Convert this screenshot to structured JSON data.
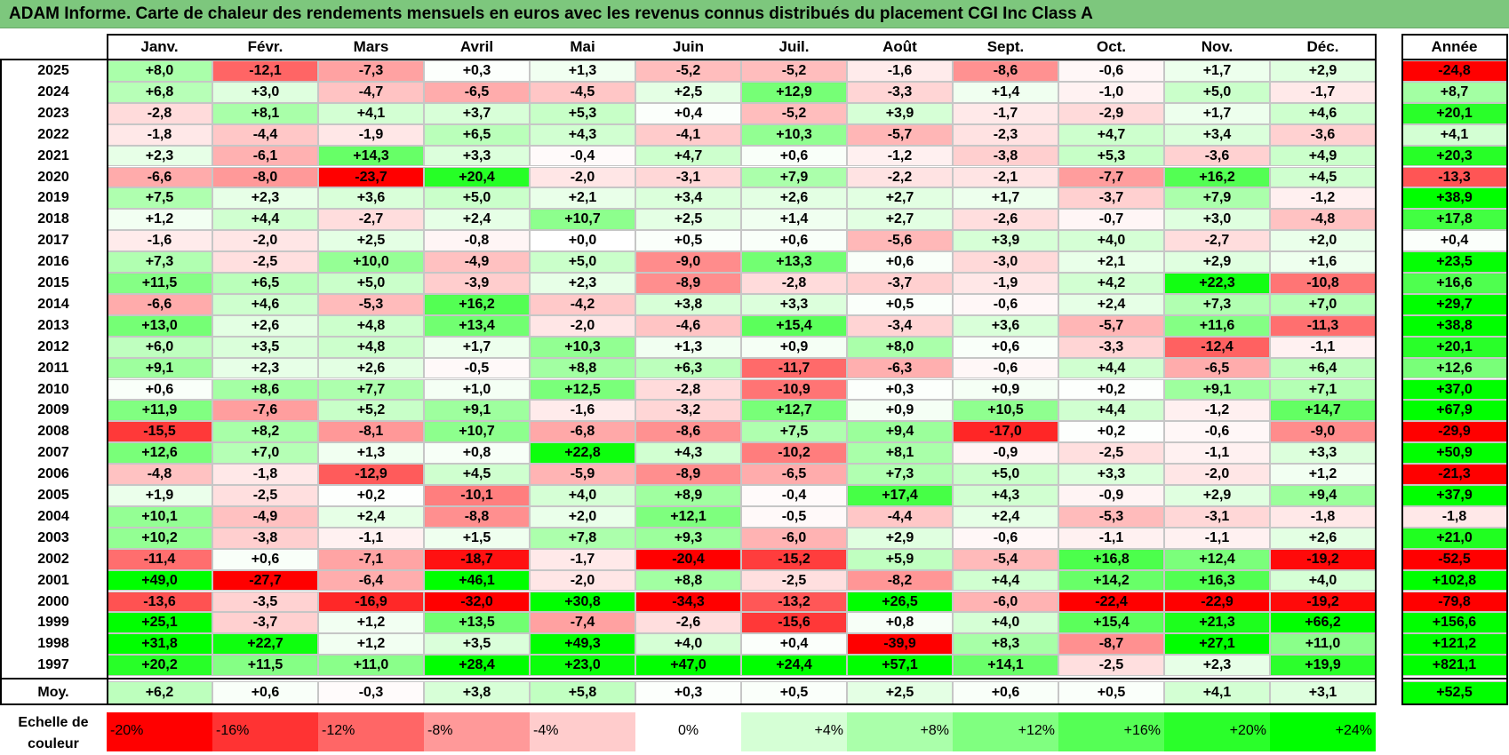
{
  "title": "ADAM Informe. Carte de chaleur des rendements mensuels en euros avec les revenus connus distribués du placement CGI Inc Class A",
  "chart_data": {
    "type": "heatmap",
    "title": "ADAM Informe. Carte de chaleur des rendements mensuels en euros avec les revenus connus distribués du placement CGI Inc Class A",
    "columns": [
      "Janv.",
      "Févr.",
      "Mars",
      "Avril",
      "Mai",
      "Juin",
      "Juil.",
      "Août",
      "Sept.",
      "Oct.",
      "Nov.",
      "Déc."
    ],
    "year_header": "Année",
    "rows": [
      {
        "year": "2025",
        "values": [
          "+8,0",
          "-12,1",
          "-7,3",
          "+0,3",
          "+1,3",
          "-5,2",
          "-5,2",
          "-1,6",
          "-8,6",
          "-0,6",
          "+1,7",
          "+2,9"
        ],
        "annual": "-24,8"
      },
      {
        "year": "2024",
        "values": [
          "+6,8",
          "+3,0",
          "-4,7",
          "-6,5",
          "-4,5",
          "+2,5",
          "+12,9",
          "-3,3",
          "+1,4",
          "-1,0",
          "+5,0",
          "-1,7"
        ],
        "annual": "+8,7"
      },
      {
        "year": "2023",
        "values": [
          "-2,8",
          "+8,1",
          "+4,1",
          "+3,7",
          "+5,3",
          "+0,4",
          "-5,2",
          "+3,9",
          "-1,7",
          "-2,9",
          "+1,7",
          "+4,6"
        ],
        "annual": "+20,1"
      },
      {
        "year": "2022",
        "values": [
          "-1,8",
          "-4,4",
          "-1,9",
          "+6,5",
          "+4,3",
          "-4,1",
          "+10,3",
          "-5,7",
          "-2,3",
          "+4,7",
          "+3,4",
          "-3,6"
        ],
        "annual": "+4,1"
      },
      {
        "year": "2021",
        "values": [
          "+2,3",
          "-6,1",
          "+14,3",
          "+3,3",
          "-0,4",
          "+4,7",
          "+0,6",
          "-1,2",
          "-3,8",
          "+5,3",
          "-3,6",
          "+4,9"
        ],
        "annual": "+20,3"
      },
      {
        "year": "2020",
        "values": [
          "-6,6",
          "-8,0",
          "-23,7",
          "+20,4",
          "-2,0",
          "-3,1",
          "+7,9",
          "-2,2",
          "-2,1",
          "-7,7",
          "+16,2",
          "+4,5"
        ],
        "annual": "-13,3"
      },
      {
        "year": "2019",
        "values": [
          "+7,5",
          "+2,3",
          "+3,6",
          "+5,0",
          "+2,1",
          "+3,4",
          "+2,6",
          "+2,7",
          "+1,7",
          "-3,7",
          "+7,9",
          "-1,2"
        ],
        "annual": "+38,9"
      },
      {
        "year": "2018",
        "values": [
          "+1,2",
          "+4,4",
          "-2,7",
          "+2,4",
          "+10,7",
          "+2,5",
          "+1,4",
          "+2,7",
          "-2,6",
          "-0,7",
          "+3,0",
          "-4,8"
        ],
        "annual": "+17,8"
      },
      {
        "year": "2017",
        "values": [
          "-1,6",
          "-2,0",
          "+2,5",
          "-0,8",
          "+0,0",
          "+0,5",
          "+0,6",
          "-5,6",
          "+3,9",
          "+4,0",
          "-2,7",
          "+2,0"
        ],
        "annual": "+0,4"
      },
      {
        "year": "2016",
        "values": [
          "+7,3",
          "-2,5",
          "+10,0",
          "-4,9",
          "+5,0",
          "-9,0",
          "+13,3",
          "+0,6",
          "-3,0",
          "+2,1",
          "+2,9",
          "+1,6"
        ],
        "annual": "+23,5"
      },
      {
        "year": "2015",
        "values": [
          "+11,5",
          "+6,5",
          "+5,0",
          "-3,9",
          "+2,3",
          "-8,9",
          "-2,8",
          "-3,7",
          "-1,9",
          "+4,2",
          "+22,3",
          "-10,8"
        ],
        "annual": "+16,6"
      },
      {
        "year": "2014",
        "values": [
          "-6,6",
          "+4,6",
          "-5,3",
          "+16,2",
          "-4,2",
          "+3,8",
          "+3,3",
          "+0,5",
          "-0,6",
          "+2,4",
          "+7,3",
          "+7,0"
        ],
        "annual": "+29,7"
      },
      {
        "year": "2013",
        "values": [
          "+13,0",
          "+2,6",
          "+4,8",
          "+13,4",
          "-2,0",
          "-4,6",
          "+15,4",
          "-3,4",
          "+3,6",
          "-5,7",
          "+11,6",
          "-11,3"
        ],
        "annual": "+38,8"
      },
      {
        "year": "2012",
        "values": [
          "+6,0",
          "+3,5",
          "+4,8",
          "+1,7",
          "+10,3",
          "+1,3",
          "+0,9",
          "+8,0",
          "+0,6",
          "-3,3",
          "-12,4",
          "-1,1"
        ],
        "annual": "+20,1"
      },
      {
        "year": "2011",
        "values": [
          "+9,1",
          "+2,3",
          "+2,6",
          "-0,5",
          "+8,8",
          "+6,3",
          "-11,7",
          "-6,3",
          "-0,6",
          "+4,4",
          "-6,5",
          "+6,4"
        ],
        "annual": "+12,6"
      },
      {
        "year": "2010",
        "values": [
          "+0,6",
          "+8,6",
          "+7,7",
          "+1,0",
          "+12,5",
          "-2,8",
          "-10,9",
          "+0,3",
          "+0,9",
          "+0,2",
          "+9,1",
          "+7,1"
        ],
        "annual": "+37,0"
      },
      {
        "year": "2009",
        "values": [
          "+11,9",
          "-7,6",
          "+5,2",
          "+9,1",
          "-1,6",
          "-3,2",
          "+12,7",
          "+0,9",
          "+10,5",
          "+4,4",
          "-1,2",
          "+14,7"
        ],
        "annual": "+67,9"
      },
      {
        "year": "2008",
        "values": [
          "-15,5",
          "+8,2",
          "-8,1",
          "+10,7",
          "-6,8",
          "-8,6",
          "+7,5",
          "+9,4",
          "-17,0",
          "+0,2",
          "-0,6",
          "-9,0"
        ],
        "annual": "-29,9"
      },
      {
        "year": "2007",
        "values": [
          "+12,6",
          "+7,0",
          "+1,3",
          "+0,8",
          "+22,8",
          "+4,3",
          "-10,2",
          "+8,1",
          "-0,9",
          "-2,5",
          "-1,1",
          "+3,3"
        ],
        "annual": "+50,9"
      },
      {
        "year": "2006",
        "values": [
          "-4,8",
          "-1,8",
          "-12,9",
          "+4,5",
          "-5,9",
          "-8,9",
          "-6,5",
          "+7,3",
          "+5,0",
          "+3,3",
          "-2,0",
          "+1,2"
        ],
        "annual": "-21,3"
      },
      {
        "year": "2005",
        "values": [
          "+1,9",
          "-2,5",
          "+0,2",
          "-10,1",
          "+4,0",
          "+8,9",
          "-0,4",
          "+17,4",
          "+4,3",
          "-0,9",
          "+2,9",
          "+9,4"
        ],
        "annual": "+37,9"
      },
      {
        "year": "2004",
        "values": [
          "+10,1",
          "-4,9",
          "+2,4",
          "-8,8",
          "+2,0",
          "+12,1",
          "-0,5",
          "-4,4",
          "+2,4",
          "-5,3",
          "-3,1",
          "-1,8"
        ],
        "annual": "-1,8"
      },
      {
        "year": "2003",
        "values": [
          "+10,2",
          "-3,8",
          "-1,1",
          "+1,5",
          "+7,8",
          "+9,3",
          "-6,0",
          "+2,9",
          "-0,6",
          "-1,1",
          "-1,1",
          "+2,6"
        ],
        "annual": "+21,0"
      },
      {
        "year": "2002",
        "values": [
          "-11,4",
          "+0,6",
          "-7,1",
          "-18,7",
          "-1,7",
          "-20,4",
          "-15,2",
          "+5,9",
          "-5,4",
          "+16,8",
          "+12,4",
          "-19,2"
        ],
        "annual": "-52,5"
      },
      {
        "year": "2001",
        "values": [
          "+49,0",
          "-27,7",
          "-6,4",
          "+46,1",
          "-2,0",
          "+8,8",
          "-2,5",
          "-8,2",
          "+4,4",
          "+14,2",
          "+16,3",
          "+4,0"
        ],
        "annual": "+102,8"
      },
      {
        "year": "2000",
        "values": [
          "-13,6",
          "-3,5",
          "-16,9",
          "-32,0",
          "+30,8",
          "-34,3",
          "-13,2",
          "+26,5",
          "-6,0",
          "-22,4",
          "-22,9",
          "-19,2"
        ],
        "annual": "-79,8"
      },
      {
        "year": "1999",
        "values": [
          "+25,1",
          "-3,7",
          "+1,2",
          "+13,5",
          "-7,4",
          "-2,6",
          "-15,6",
          "+0,8",
          "+4,0",
          "+15,4",
          "+21,3",
          "+66,2"
        ],
        "annual": "+156,6"
      },
      {
        "year": "1998",
        "values": [
          "+31,8",
          "+22,7",
          "+1,2",
          "+3,5",
          "+49,3",
          "+4,0",
          "+0,4",
          "-39,9",
          "+8,3",
          "-8,7",
          "+27,1",
          "+11,0"
        ],
        "annual": "+121,2"
      },
      {
        "year": "1997",
        "values": [
          "+20,2",
          "+11,5",
          "+11,0",
          "+28,4",
          "+23,0",
          "+47,0",
          "+24,4",
          "+57,1",
          "+14,1",
          "-2,5",
          "+2,3",
          "+19,9"
        ],
        "annual": "+821,1"
      }
    ],
    "average": {
      "label": "Moy.",
      "values": [
        "+6,2",
        "+0,6",
        "-0,3",
        "+3,8",
        "+5,8",
        "+0,3",
        "+0,5",
        "+2,5",
        "+0,6",
        "+0,5",
        "+4,1",
        "+3,1"
      ],
      "annual": "+52,5"
    },
    "legend": {
      "label": "Echelle de couleur",
      "stops": [
        "-20%",
        "-16%",
        "-12%",
        "-8%",
        "-4%",
        "0%",
        "+4%",
        "+8%",
        "+12%",
        "+16%",
        "+20%",
        "+24%"
      ],
      "stop_values": [
        -20,
        -16,
        -12,
        -8,
        -4,
        0,
        4,
        8,
        12,
        16,
        20,
        24
      ]
    },
    "color_scale": {
      "negative": "#ff0000",
      "zero": "#ffffff",
      "positive": "#00ff00",
      "saturation_negative": -20,
      "saturation_positive": 24
    },
    "title_bar_color": "#7dc77d"
  }
}
